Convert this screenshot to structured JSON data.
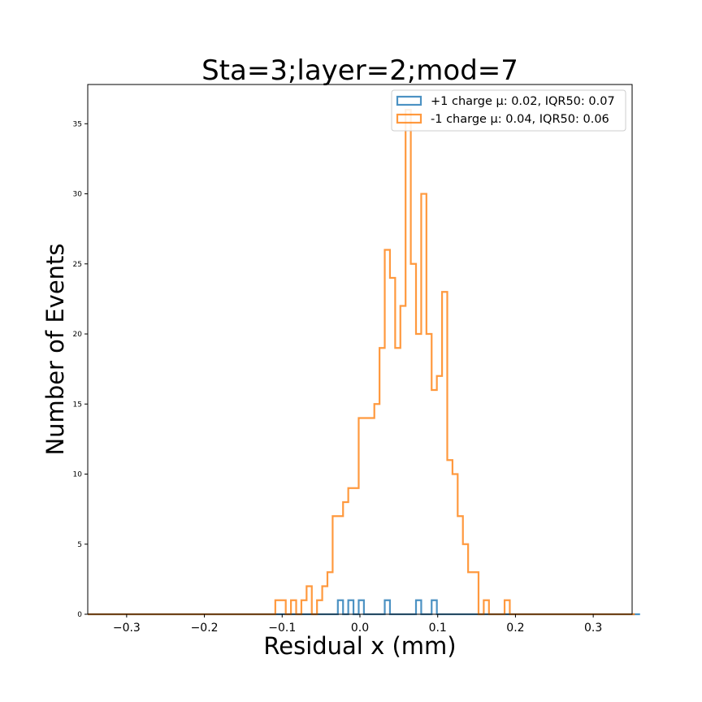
{
  "chart_data": {
    "type": "histogram-step",
    "title": "Sta=3;layer=2;mod=7",
    "xlabel": "Residual x (mm)",
    "ylabel": "Number of Events",
    "xlim": [
      -0.35,
      0.35
    ],
    "ylim": [
      0,
      37.8
    ],
    "xticks": [
      -0.3,
      -0.2,
      -0.1,
      0.0,
      0.1,
      0.2,
      0.3
    ],
    "xtick_labels": [
      "−0.3",
      "−0.2",
      "−0.1",
      "0.0",
      "0.1",
      "0.2",
      "0.3"
    ],
    "yticks": [
      0,
      5,
      10,
      15,
      20,
      25,
      30,
      35
    ],
    "ytick_labels": [
      "0",
      "5",
      "10",
      "15",
      "20",
      "25",
      "30",
      "35"
    ],
    "legend_position": "top-right",
    "grid": false,
    "bin_start": -0.35,
    "bin_width": 0.0067,
    "series": [
      {
        "name": "+1 charge μ: 0.02, IQR50: 0.07",
        "color": "#1f77b4",
        "counts": [
          0,
          0,
          0,
          0,
          0,
          0,
          0,
          0,
          0,
          0,
          0,
          0,
          0,
          0,
          0,
          0,
          0,
          0,
          0,
          0,
          0,
          0,
          0,
          0,
          0,
          0,
          0,
          0,
          0,
          0,
          0,
          0,
          0,
          0,
          0,
          0,
          0,
          0,
          0,
          0,
          0,
          0,
          0,
          0,
          0,
          0,
          0,
          0,
          1,
          0,
          1,
          0,
          1,
          0,
          0,
          0,
          0,
          1,
          0,
          0,
          0,
          0,
          0,
          1,
          0,
          0,
          1,
          0,
          0,
          0,
          0,
          0,
          0,
          0,
          0,
          0,
          0,
          0,
          0,
          0,
          0,
          0,
          0,
          0,
          0,
          0,
          0,
          0,
          0,
          0,
          0,
          0,
          0,
          0,
          0,
          0,
          0,
          0,
          0,
          0,
          0,
          0,
          0,
          0,
          0,
          0
        ]
      },
      {
        "name": "-1 charge μ: 0.04, IQR50: 0.06",
        "color": "#ff7f0e",
        "counts": [
          0,
          0,
          0,
          0,
          0,
          0,
          0,
          0,
          0,
          0,
          0,
          0,
          0,
          0,
          0,
          0,
          0,
          0,
          0,
          0,
          0,
          0,
          0,
          0,
          0,
          0,
          0,
          0,
          0,
          0,
          0,
          0,
          0,
          0,
          0,
          0,
          1,
          1,
          0,
          1,
          0,
          1,
          2,
          0,
          1,
          2,
          3,
          7,
          7,
          8,
          9,
          9,
          14,
          14,
          14,
          15,
          19,
          26,
          24,
          19,
          22,
          36,
          25,
          20,
          30,
          20,
          16,
          17,
          23,
          11,
          10,
          7,
          5,
          3,
          3,
          0,
          1,
          0,
          0,
          0,
          1,
          0,
          0,
          0,
          0,
          0,
          0,
          0,
          0,
          0,
          0,
          0,
          0,
          0,
          0,
          0,
          0,
          0,
          0,
          0,
          0,
          0,
          0,
          0,
          0
        ]
      }
    ]
  }
}
